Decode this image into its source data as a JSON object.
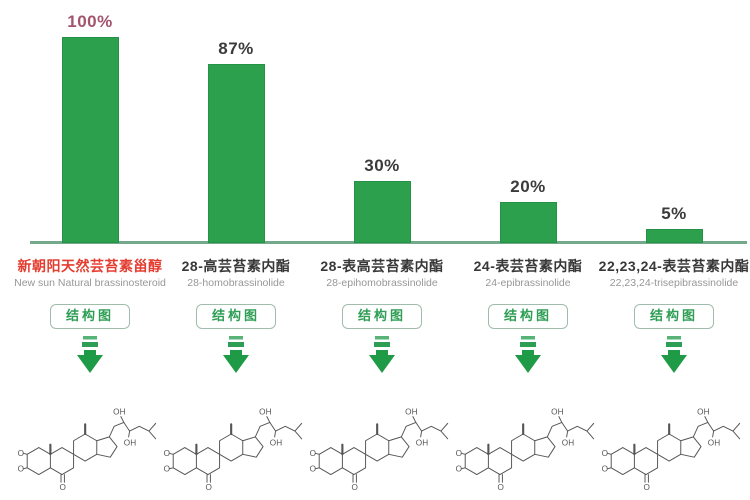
{
  "chart_data": {
    "type": "bar",
    "title": "",
    "categories": [
      "新朝阳天然芸苔素甾醇",
      "28-高芸苔素内酯",
      "28-表高芸苔素内酯",
      "24-表芸苔素内酯",
      "22,23,24-表芸苔素内酯"
    ],
    "categories_en": [
      "New sun Natural brassinosteroid",
      "28-homobrassinolide",
      "28-epihomobrassinolide",
      "24-epibrassinolide",
      "22,23,24-trisepibrassinolide"
    ],
    "values": [
      100,
      87,
      30,
      20,
      5
    ],
    "unit": "%",
    "data_labels": [
      "100%",
      "87%",
      "30%",
      "20%",
      "5%"
    ],
    "ylim": [
      0,
      100
    ],
    "grid": false,
    "legend": "none",
    "bar_color": "#2ca04c",
    "axis_color": "#74a98c",
    "highlight_index": 0,
    "highlight_label_color": "#a4536d",
    "highlight_category_color": "#e43d30"
  },
  "columns": [
    {
      "percent": "100%",
      "value": 100,
      "name_cn": "新朝阳天然芸苔素甾醇",
      "name_en": "New sun Natural brassinosteroid",
      "highlight": true
    },
    {
      "percent": "87%",
      "value": 87,
      "name_cn": "28-高芸苔素内酯",
      "name_en": "28-homobrassinolide",
      "highlight": false
    },
    {
      "percent": "30%",
      "value": 30,
      "name_cn": "28-表高芸苔素内酯",
      "name_en": "28-epihomobrassinolide",
      "highlight": false
    },
    {
      "percent": "20%",
      "value": 20,
      "name_cn": "24-表芸苔素内酯",
      "name_en": "24-epibrassinolide",
      "highlight": false
    },
    {
      "percent": "5%",
      "value": 5,
      "name_cn": "22,23,24-表芸苔素内酯",
      "name_en": "22,23,24-trisepibrassinolide",
      "highlight": false
    }
  ],
  "button_label": "结构图",
  "molecule": {
    "labels": {
      "ho1": "HO",
      "ho2": "HO",
      "oh_top": "OH",
      "oh_mid": "OH",
      "o_ketone": "O"
    }
  },
  "colors": {
    "bar_green": "#2ca04c",
    "axis_green": "#74a98c",
    "button_border": "#a0bcab",
    "button_text": "#2f9e55",
    "arrow_green": "#1f9b47",
    "percent_text": "#3b3b3b",
    "percent_highlight": "#a4536d",
    "category_text": "#383838",
    "category_highlight": "#e43d30",
    "english_text": "#979797",
    "molecule_stroke": "#555555"
  }
}
